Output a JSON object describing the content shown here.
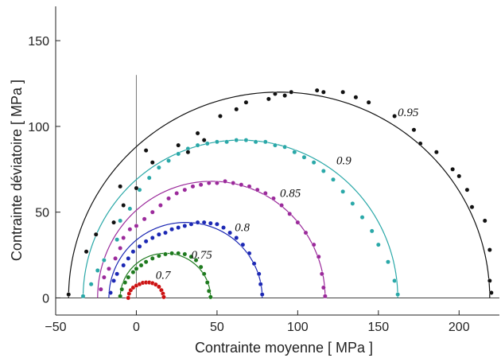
{
  "chart_data": {
    "type": "scatter",
    "title": "",
    "xlabel": "Contrainte moyenne [ MPa ]",
    "ylabel": "Contrainte déviatoire [ MPa ]",
    "xlim": [
      -50,
      225
    ],
    "ylim": [
      -10,
      170
    ],
    "xticks": [
      -50,
      0,
      50,
      100,
      150,
      200
    ],
    "yticks": [
      0,
      50,
      100,
      150
    ],
    "grid": false,
    "legend": "none",
    "axis_box": "left-and-bottom",
    "vertical_reference_line": {
      "x": 0,
      "y_top": 130
    },
    "series": [
      {
        "label": "0.7",
        "color": "#cc1111",
        "fit": {
          "x_left": -5,
          "x_right": 17,
          "y_peak": 9
        },
        "points": [
          [
            -5,
            0
          ],
          [
            -4.5,
            2.5
          ],
          [
            -3.5,
            4.5
          ],
          [
            -2,
            6
          ],
          [
            0,
            7.2
          ],
          [
            2,
            8
          ],
          [
            4,
            8.8
          ],
          [
            6,
            9
          ],
          [
            8,
            9
          ],
          [
            10,
            8.6
          ],
          [
            12,
            7.8
          ],
          [
            14,
            6.5
          ],
          [
            15.5,
            4.5
          ],
          [
            16.5,
            2.5
          ],
          [
            17,
            0.5
          ]
        ]
      },
      {
        "label": "0.75",
        "color": "#1e7a1e",
        "fit": {
          "x_left": -10,
          "x_right": 46,
          "y_peak": 26
        },
        "points": [
          [
            -10,
            1
          ],
          [
            -9,
            5
          ],
          [
            -7,
            9
          ],
          [
            -5,
            12
          ],
          [
            -2,
            15
          ],
          [
            0,
            17
          ],
          [
            3,
            19
          ],
          [
            6,
            21
          ],
          [
            10,
            23
          ],
          [
            14,
            24.5
          ],
          [
            18,
            25.5
          ],
          [
            22,
            26
          ],
          [
            26,
            26
          ],
          [
            30,
            25.5
          ],
          [
            34,
            24
          ],
          [
            37,
            22
          ],
          [
            40,
            18
          ],
          [
            42,
            14
          ],
          [
            44,
            9
          ],
          [
            45,
            4
          ],
          [
            46,
            0.5
          ]
        ]
      },
      {
        "label": "0.8",
        "color": "#1c28b4",
        "fit": {
          "x_left": -17,
          "x_right": 78,
          "y_peak": 44
        },
        "points": [
          [
            -16,
            3
          ],
          [
            -14,
            10
          ],
          [
            -12,
            14
          ],
          [
            -8,
            19
          ],
          [
            -5,
            23
          ],
          [
            -2,
            27
          ],
          [
            2,
            30
          ],
          [
            6,
            33
          ],
          [
            10,
            35
          ],
          [
            14,
            37
          ],
          [
            18,
            38
          ],
          [
            22,
            40
          ],
          [
            26,
            41
          ],
          [
            30,
            42
          ],
          [
            34,
            43
          ],
          [
            38,
            44
          ],
          [
            42,
            44
          ],
          [
            46,
            43.5
          ],
          [
            50,
            43
          ],
          [
            54,
            41
          ],
          [
            58,
            38
          ],
          [
            62,
            35
          ],
          [
            66,
            31
          ],
          [
            70,
            26
          ],
          [
            73,
            20
          ],
          [
            76,
            14
          ],
          [
            77,
            8
          ],
          [
            78,
            2
          ]
        ]
      },
      {
        "label": "0.85",
        "color": "#9b2a9b",
        "fit": {
          "x_left": -24,
          "x_right": 117,
          "y_peak": 68
        },
        "points": [
          [
            -22,
            5
          ],
          [
            -20,
            12
          ],
          [
            -17,
            17
          ],
          [
            -13,
            23
          ],
          [
            -10,
            29
          ],
          [
            -8,
            35
          ],
          [
            -4,
            40
          ],
          [
            0,
            42
          ],
          [
            5,
            46
          ],
          [
            10,
            50
          ],
          [
            15,
            54
          ],
          [
            20,
            58
          ],
          [
            25,
            61
          ],
          [
            30,
            63
          ],
          [
            35,
            65
          ],
          [
            40,
            66
          ],
          [
            45,
            67
          ],
          [
            50,
            67
          ],
          [
            55,
            68
          ],
          [
            60,
            67
          ],
          [
            65,
            66
          ],
          [
            70,
            65
          ],
          [
            75,
            63
          ],
          [
            80,
            61
          ],
          [
            85,
            58
          ],
          [
            90,
            54
          ],
          [
            95,
            49
          ],
          [
            100,
            44
          ],
          [
            105,
            38
          ],
          [
            110,
            31
          ],
          [
            113,
            24
          ],
          [
            115,
            14
          ],
          [
            116,
            6
          ],
          [
            117,
            1
          ]
        ]
      },
      {
        "label": "0.9",
        "color": "#2aa8a8",
        "fit": {
          "x_left": -33,
          "x_right": 162,
          "y_peak": 92
        },
        "points": [
          [
            -33,
            1
          ],
          [
            -28,
            8
          ],
          [
            -24,
            16
          ],
          [
            -20,
            22
          ],
          [
            -12,
            34
          ],
          [
            -10,
            45
          ],
          [
            -4,
            52
          ],
          [
            2,
            63
          ],
          [
            8,
            70
          ],
          [
            14,
            76
          ],
          [
            20,
            80
          ],
          [
            26,
            84
          ],
          [
            32,
            87
          ],
          [
            38,
            89
          ],
          [
            44,
            90
          ],
          [
            50,
            91
          ],
          [
            56,
            91
          ],
          [
            62,
            92
          ],
          [
            68,
            92
          ],
          [
            74,
            91
          ],
          [
            80,
            91
          ],
          [
            86,
            89
          ],
          [
            92,
            88
          ],
          [
            98,
            85
          ],
          [
            104,
            82
          ],
          [
            110,
            79
          ],
          [
            116,
            74
          ],
          [
            122,
            69
          ],
          [
            128,
            62
          ],
          [
            134,
            55
          ],
          [
            140,
            47
          ],
          [
            146,
            39
          ],
          [
            150,
            31
          ],
          [
            156,
            21
          ],
          [
            160,
            10
          ],
          [
            162,
            2
          ]
        ]
      },
      {
        "label": "0.95",
        "color": "#111111",
        "fit": {
          "x_left": -42,
          "x_right": 219,
          "y_peak": 120
        },
        "points": [
          [
            -42,
            2
          ],
          [
            -31,
            27
          ],
          [
            -25,
            37
          ],
          [
            -14,
            44
          ],
          [
            -8,
            54
          ],
          [
            -10,
            65
          ],
          [
            0,
            64
          ],
          [
            6,
            86
          ],
          [
            10,
            79
          ],
          [
            26,
            89
          ],
          [
            32,
            85
          ],
          [
            38,
            96
          ],
          [
            42,
            92
          ],
          [
            52,
            106
          ],
          [
            62,
            110
          ],
          [
            68,
            114
          ],
          [
            82,
            116
          ],
          [
            86,
            119
          ],
          [
            92,
            118
          ],
          [
            96,
            120
          ],
          [
            112,
            121
          ],
          [
            116,
            120
          ],
          [
            128,
            120
          ],
          [
            136,
            117
          ],
          [
            144,
            114
          ],
          [
            160,
            106
          ],
          [
            172,
            98
          ],
          [
            176,
            90
          ],
          [
            186,
            85
          ],
          [
            196,
            75
          ],
          [
            200,
            71
          ],
          [
            205,
            63
          ],
          [
            208,
            53
          ],
          [
            216,
            45
          ],
          [
            219,
            28
          ],
          [
            219,
            10
          ],
          [
            220,
            3
          ]
        ]
      }
    ],
    "curve_labels": [
      {
        "text": "0.7",
        "x": 12,
        "y": 11
      },
      {
        "text": "0.75",
        "x": 34,
        "y": 23
      },
      {
        "text": "0.8",
        "x": 61,
        "y": 39
      },
      {
        "text": "0.85",
        "x": 89,
        "y": 59
      },
      {
        "text": "0.9",
        "x": 124,
        "y": 78
      },
      {
        "text": "0.95",
        "x": 162,
        "y": 106
      }
    ]
  }
}
